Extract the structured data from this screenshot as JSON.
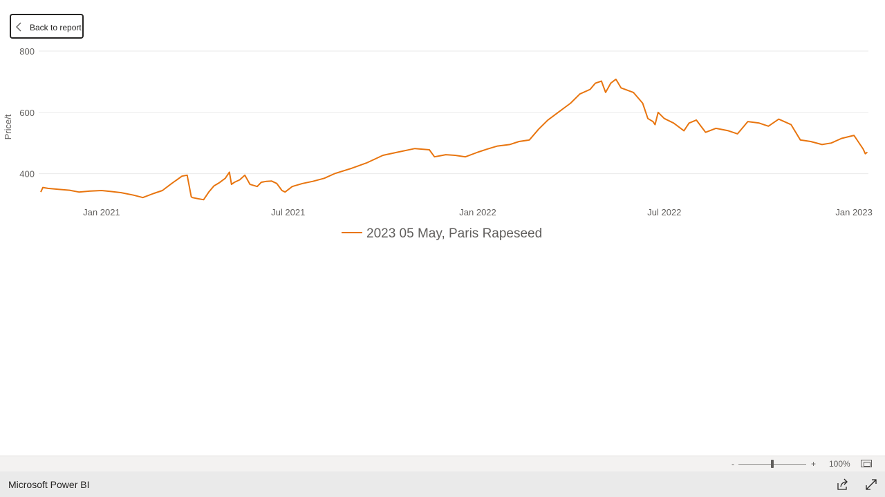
{
  "back_button": {
    "label": "Back to report",
    "icon": "chevron-left-icon"
  },
  "chart_data": {
    "type": "line",
    "title": "",
    "xlabel": "",
    "ylabel": "Price/t",
    "ylim": [
      300,
      800
    ],
    "yticks": [
      400,
      600,
      800
    ],
    "ytick_labels": [
      "400",
      "600",
      "800"
    ],
    "xlim": [
      "2020-11-01",
      "2023-01-15"
    ],
    "xticks": [
      "2021-01-01",
      "2021-07-01",
      "2022-01-01",
      "2022-07-01",
      "2023-01-01"
    ],
    "xtick_labels": [
      "Jan 2021",
      "Jul 2021",
      "Jan 2022",
      "Jul 2022",
      "Jan 2023"
    ],
    "grid": "horizontal",
    "legend_position": "bottom-center",
    "color": "#e8750f",
    "series": [
      {
        "name": "2023 05 May, Paris Rapeseed",
        "x": [
          "2020-11-03",
          "2020-11-05",
          "2020-11-10",
          "2020-11-20",
          "2020-12-01",
          "2020-12-10",
          "2020-12-20",
          "2021-01-01",
          "2021-01-10",
          "2021-01-20",
          "2021-02-01",
          "2021-02-10",
          "2021-02-20",
          "2021-03-01",
          "2021-03-10",
          "2021-03-15",
          "2021-03-20",
          "2021-03-25",
          "2021-03-29",
          "2021-03-30",
          "2021-04-05",
          "2021-04-10",
          "2021-04-15",
          "2021-04-20",
          "2021-04-25",
          "2021-05-01",
          "2021-05-05",
          "2021-05-07",
          "2021-05-10",
          "2021-05-15",
          "2021-05-20",
          "2021-05-25",
          "2021-06-01",
          "2021-06-05",
          "2021-06-10",
          "2021-06-15",
          "2021-06-20",
          "2021-06-25",
          "2021-06-28",
          "2021-07-05",
          "2021-07-15",
          "2021-07-25",
          "2021-08-05",
          "2021-08-15",
          "2021-09-01",
          "2021-09-15",
          "2021-10-01",
          "2021-10-15",
          "2021-11-01",
          "2021-11-15",
          "2021-11-20",
          "2021-12-01",
          "2021-12-10",
          "2021-12-20",
          "2022-01-01",
          "2022-01-10",
          "2022-01-20",
          "2022-02-01",
          "2022-02-10",
          "2022-02-20",
          "2022-03-01",
          "2022-03-10",
          "2022-03-20",
          "2022-04-01",
          "2022-04-10",
          "2022-04-20",
          "2022-04-25",
          "2022-05-01",
          "2022-05-05",
          "2022-05-10",
          "2022-05-15",
          "2022-05-20",
          "2022-06-01",
          "2022-06-10",
          "2022-06-15",
          "2022-06-20",
          "2022-06-22",
          "2022-06-25",
          "2022-07-01",
          "2022-07-10",
          "2022-07-20",
          "2022-07-25",
          "2022-08-01",
          "2022-08-10",
          "2022-08-20",
          "2022-09-01",
          "2022-09-10",
          "2022-09-20",
          "2022-10-01",
          "2022-10-10",
          "2022-10-20",
          "2022-11-01",
          "2022-11-10",
          "2022-11-20",
          "2022-12-01",
          "2022-12-10",
          "2022-12-20",
          "2023-01-01",
          "2023-01-05",
          "2023-01-10",
          "2023-01-12",
          "2023-01-14"
        ],
        "values": [
          340,
          355,
          352,
          349,
          346,
          340,
          343,
          345,
          342,
          338,
          330,
          322,
          335,
          345,
          368,
          380,
          392,
          395,
          325,
          322,
          318,
          315,
          340,
          360,
          370,
          385,
          405,
          365,
          372,
          380,
          395,
          365,
          358,
          372,
          375,
          376,
          368,
          345,
          340,
          358,
          368,
          375,
          385,
          400,
          418,
          435,
          460,
          470,
          482,
          478,
          455,
          462,
          460,
          455,
          470,
          480,
          490,
          495,
          505,
          510,
          545,
          575,
          600,
          630,
          660,
          675,
          695,
          702,
          665,
          695,
          708,
          680,
          665,
          630,
          580,
          570,
          560,
          600,
          580,
          565,
          540,
          565,
          575,
          535,
          548,
          540,
          530,
          570,
          565,
          555,
          578,
          560,
          510,
          505,
          495,
          500,
          515,
          525,
          505,
          480,
          465,
          470
        ]
      }
    ]
  },
  "zoom": {
    "minus": "-",
    "plus": "+",
    "level": "100%"
  },
  "footer": {
    "brand": "Microsoft Power BI",
    "share_icon": "share-icon",
    "fullscreen_icon": "fullscreen-icon"
  }
}
